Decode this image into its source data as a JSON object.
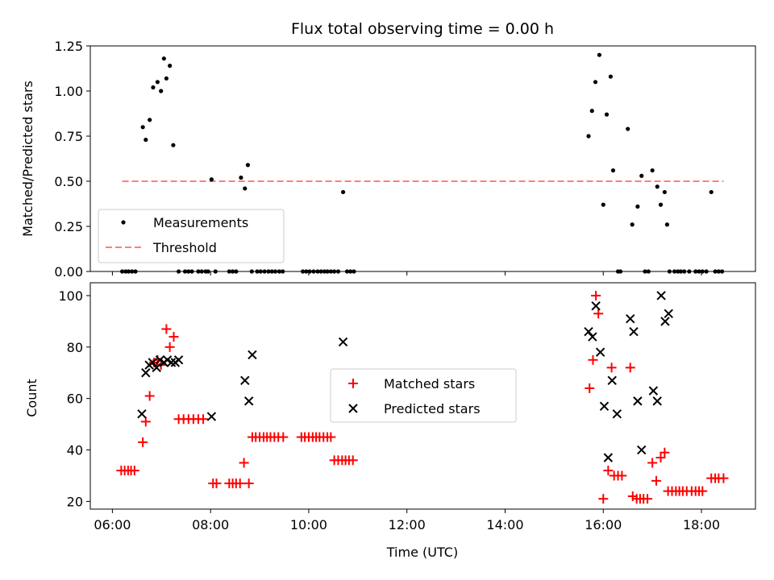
{
  "chart_data": [
    {
      "type": "scatter",
      "title": "Flux total observing time = 0.00 h",
      "xlabel": "",
      "ylabel": "Matched/Predicted stars",
      "xlim": [
        5.55,
        19.1
      ],
      "ylim": [
        0,
        1.25
      ],
      "yticks": [
        "0.00",
        "0.25",
        "0.50",
        "0.75",
        "1.00",
        "1.25"
      ],
      "xtick_values": [
        6,
        8,
        10,
        12,
        14,
        16,
        18
      ],
      "legend_position": "lower-left",
      "colors": {
        "measurements": "#000000",
        "threshold": "#ff7f7f"
      },
      "series": [
        {
          "name": "Measurements",
          "x": [
            6.2,
            6.27,
            6.33,
            6.4,
            6.47,
            6.62,
            6.68,
            6.76,
            6.83,
            6.92,
            6.99,
            7.05,
            7.1,
            7.17,
            7.24,
            7.35,
            7.48,
            7.55,
            7.62,
            7.75,
            7.82,
            7.9,
            7.95,
            8.02,
            8.1,
            8.38,
            8.45,
            8.52,
            8.62,
            8.7,
            8.76,
            8.84,
            8.95,
            9.02,
            9.1,
            9.18,
            9.25,
            9.32,
            9.4,
            9.47,
            9.88,
            9.95,
            10.02,
            10.1,
            10.18,
            10.25,
            10.32,
            10.38,
            10.45,
            10.52,
            10.6,
            10.7,
            10.78,
            10.85,
            10.92,
            15.7,
            15.77,
            15.84,
            15.92,
            16.0,
            16.07,
            16.15,
            16.2,
            16.3,
            16.35,
            16.5,
            16.59,
            16.7,
            16.78,
            16.85,
            16.92,
            17.0,
            17.1,
            17.17,
            17.25,
            17.3,
            17.35,
            17.45,
            17.52,
            17.58,
            17.65,
            17.75,
            17.88,
            17.95,
            18.02,
            18.1,
            18.2,
            18.28,
            18.35,
            18.42
          ],
          "y": [
            0,
            0,
            0,
            0,
            0,
            0.8,
            0.73,
            0.84,
            1.02,
            1.05,
            1.0,
            1.18,
            1.07,
            1.14,
            0.7,
            0,
            0,
            0,
            0,
            0,
            0,
            0,
            0,
            0.51,
            0,
            0,
            0,
            0,
            0.52,
            0.46,
            0.59,
            0,
            0,
            0,
            0,
            0,
            0,
            0,
            0,
            0,
            0,
            0,
            0,
            0,
            0,
            0,
            0,
            0,
            0,
            0,
            0,
            0.44,
            0,
            0,
            0,
            0.75,
            0.89,
            1.05,
            1.2,
            0.37,
            0.87,
            1.08,
            0.56,
            0,
            0,
            0.79,
            0.26,
            0.36,
            0.53,
            0,
            0,
            0.56,
            0.47,
            0.37,
            0.44,
            0.26,
            0,
            0,
            0,
            0,
            0,
            0,
            0,
            0,
            0,
            0,
            0.44,
            0,
            0,
            0
          ]
        },
        {
          "name": "Threshold",
          "x": [
            6.2,
            18.45
          ],
          "y": [
            0.5,
            0.5
          ]
        }
      ]
    },
    {
      "type": "scatter",
      "title": "",
      "xlabel": "Time (UTC)",
      "ylabel": "Count",
      "xlim": [
        5.55,
        19.1
      ],
      "ylim": [
        17,
        105
      ],
      "yticks": [
        "20",
        "40",
        "60",
        "80",
        "100"
      ],
      "xticks": [
        "06:00",
        "08:00",
        "10:00",
        "12:00",
        "14:00",
        "16:00",
        "18:00"
      ],
      "xtick_values": [
        6,
        8,
        10,
        12,
        14,
        16,
        18
      ],
      "legend_position": "center",
      "colors": {
        "matched": "#ff0000",
        "predicted": "#000000"
      },
      "series": [
        {
          "name": "Matched stars",
          "x": [
            6.18,
            6.25,
            6.32,
            6.38,
            6.45,
            6.62,
            6.68,
            6.76,
            6.85,
            6.92,
            6.99,
            7.1,
            7.17,
            7.25,
            7.35,
            7.45,
            7.55,
            7.65,
            7.75,
            7.85,
            8.05,
            8.12,
            8.38,
            8.45,
            8.52,
            8.6,
            8.68,
            8.78,
            8.85,
            8.92,
            9.0,
            9.08,
            9.15,
            9.22,
            9.3,
            9.38,
            9.48,
            9.85,
            9.92,
            10.0,
            10.08,
            10.15,
            10.22,
            10.3,
            10.38,
            10.45,
            10.52,
            10.6,
            10.68,
            10.75,
            10.82,
            10.9,
            15.72,
            15.79,
            15.85,
            15.9,
            16.0,
            16.1,
            16.17,
            16.22,
            16.3,
            16.38,
            16.55,
            16.6,
            16.68,
            16.75,
            16.82,
            16.9,
            17.0,
            17.08,
            17.17,
            17.25,
            17.32,
            17.4,
            17.48,
            17.55,
            17.62,
            17.7,
            17.8,
            17.88,
            17.95,
            18.02,
            18.2,
            18.28,
            18.35,
            18.45
          ],
          "y": [
            32,
            32,
            32,
            32,
            32,
            43,
            51,
            61,
            74,
            75,
            73,
            87,
            80,
            84,
            52,
            52,
            52,
            52,
            52,
            52,
            27,
            27,
            27,
            27,
            27,
            27,
            35,
            27,
            45,
            45,
            45,
            45,
            45,
            45,
            45,
            45,
            45,
            45,
            45,
            45,
            45,
            45,
            45,
            45,
            45,
            45,
            36,
            36,
            36,
            36,
            36,
            36,
            64,
            75,
            100,
            93,
            21,
            32,
            72,
            30,
            30,
            30,
            72,
            22,
            21,
            21,
            21,
            21,
            35,
            28,
            37,
            39,
            24,
            24,
            24,
            24,
            24,
            24,
            24,
            24,
            24,
            24,
            29,
            29,
            29,
            29
          ]
        },
        {
          "name": "Predicted stars",
          "x": [
            6.6,
            6.68,
            6.75,
            6.82,
            6.9,
            6.97,
            7.05,
            7.12,
            7.2,
            7.28,
            7.35,
            8.02,
            8.7,
            8.78,
            8.85,
            10.7,
            15.7,
            15.78,
            15.85,
            15.94,
            16.02,
            16.1,
            16.18,
            16.28,
            16.55,
            16.62,
            16.7,
            16.78,
            17.02,
            17.1,
            17.18,
            17.26,
            17.33
          ],
          "y": [
            54,
            70,
            73,
            74,
            72,
            75,
            74,
            75,
            74,
            74,
            75,
            53,
            67,
            59,
            77,
            82,
            86,
            84,
            96,
            78,
            57,
            37,
            67,
            54,
            91,
            86,
            59,
            40,
            63,
            59,
            100,
            90,
            93
          ]
        }
      ]
    }
  ]
}
